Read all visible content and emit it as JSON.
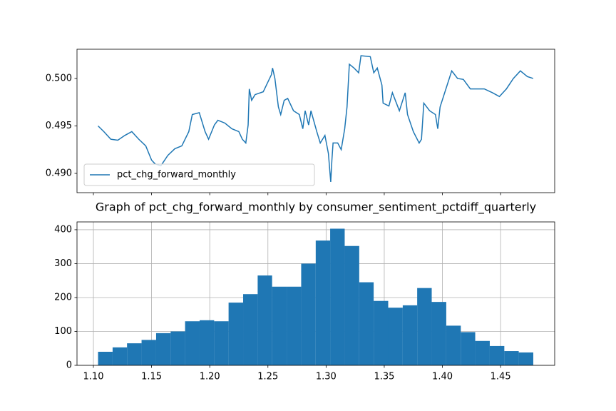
{
  "chart_data": [
    {
      "type": "line",
      "x": [
        1.104,
        1.109,
        1.115,
        1.121,
        1.127,
        1.133,
        1.139,
        1.145,
        1.15,
        1.153,
        1.158,
        1.164,
        1.17,
        1.176,
        1.182,
        1.185,
        1.191,
        1.196,
        1.199,
        1.204,
        1.207,
        1.213,
        1.219,
        1.225,
        1.228,
        1.231,
        1.233,
        1.234,
        1.236,
        1.239,
        1.246,
        1.253,
        1.254,
        1.256,
        1.259,
        1.261,
        1.264,
        1.267,
        1.272,
        1.277,
        1.28,
        1.282,
        1.285,
        1.287,
        1.292,
        1.295,
        1.299,
        1.302,
        1.304,
        1.305,
        1.306,
        1.31,
        1.313,
        1.316,
        1.318,
        1.32,
        1.324,
        1.328,
        1.33,
        1.338,
        1.341,
        1.344,
        1.348,
        1.349,
        1.354,
        1.357,
        1.363,
        1.368,
        1.37,
        1.375,
        1.38,
        1.382,
        1.384,
        1.389,
        1.394,
        1.396,
        1.398,
        1.403,
        1.408,
        1.413,
        1.418,
        1.424,
        1.43,
        1.436,
        1.443,
        1.449,
        1.455,
        1.461,
        1.467,
        1.473,
        1.478
      ],
      "series": [
        {
          "name": "pct_chg_forward_monthly",
          "color": "#1f77b4",
          "values": [
            0.495,
            0.4944,
            0.4936,
            0.4935,
            0.494,
            0.4944,
            0.4936,
            0.4929,
            0.4914,
            0.491,
            0.4908,
            0.4919,
            0.4926,
            0.4929,
            0.4944,
            0.4962,
            0.4964,
            0.4944,
            0.4936,
            0.4951,
            0.4956,
            0.4953,
            0.4947,
            0.4944,
            0.4936,
            0.4932,
            0.4951,
            0.4989,
            0.4977,
            0.4983,
            0.4986,
            0.5004,
            0.5011,
            0.5,
            0.497,
            0.4962,
            0.4977,
            0.4979,
            0.4966,
            0.4962,
            0.4947,
            0.4966,
            0.4951,
            0.4966,
            0.4944,
            0.4932,
            0.494,
            0.4921,
            0.4891,
            0.4914,
            0.4932,
            0.4932,
            0.4925,
            0.4947,
            0.497,
            0.5015,
            0.5011,
            0.5006,
            0.5024,
            0.5023,
            0.5006,
            0.5011,
            0.4993,
            0.4974,
            0.4971,
            0.4985,
            0.4966,
            0.4985,
            0.4962,
            0.4944,
            0.4932,
            0.4936,
            0.4974,
            0.4966,
            0.4962,
            0.4947,
            0.497,
            0.4989,
            0.5008,
            0.5,
            0.4999,
            0.4989,
            0.4989,
            0.4989,
            0.4985,
            0.4981,
            0.4989,
            0.5,
            0.5008,
            0.5002,
            0.5
          ]
        }
      ],
      "xlim": [
        1.0859,
        1.4965
      ],
      "xticks": [
        1.1,
        1.15,
        1.2,
        1.25,
        1.3,
        1.35,
        1.4,
        1.45
      ],
      "x_tick_labels": false,
      "ylim": [
        0.48797,
        0.50308
      ],
      "yticks": [
        {
          "value": 0.49,
          "label": "0.490"
        },
        {
          "value": 0.495,
          "label": "0.495"
        },
        {
          "value": 0.5,
          "label": "0.500"
        }
      ],
      "grid": false,
      "legend": "lower left"
    },
    {
      "type": "histogram",
      "title": "Graph of pct_chg_forward_monthly by consumer_sentiment_pctdiff_quarterly",
      "bins": [
        1.104,
        1.1165,
        1.1289,
        1.1414,
        1.1539,
        1.1664,
        1.1788,
        1.1913,
        1.2038,
        1.2162,
        1.2287,
        1.2412,
        1.2536,
        1.2661,
        1.2786,
        1.2911,
        1.3035,
        1.316,
        1.3285,
        1.3409,
        1.3534,
        1.3659,
        1.3783,
        1.3908,
        1.4033,
        1.4158,
        1.4282,
        1.4407,
        1.4532,
        1.4656,
        1.4781
      ],
      "values": [
        40,
        53,
        65,
        75,
        95,
        100,
        130,
        133,
        130,
        185,
        210,
        265,
        232,
        232,
        300,
        368,
        403,
        352,
        245,
        190,
        170,
        177,
        228,
        187,
        117,
        98,
        72,
        57,
        42,
        38
      ],
      "color": "#1f77b4",
      "xlim": [
        1.0859,
        1.4965
      ],
      "xticks": [
        {
          "value": 1.1,
          "label": "1.10"
        },
        {
          "value": 1.15,
          "label": "1.15"
        },
        {
          "value": 1.2,
          "label": "1.20"
        },
        {
          "value": 1.25,
          "label": "1.25"
        },
        {
          "value": 1.3,
          "label": "1.30"
        },
        {
          "value": 1.35,
          "label": "1.35"
        },
        {
          "value": 1.4,
          "label": "1.40"
        },
        {
          "value": 1.45,
          "label": "1.45"
        }
      ],
      "ylim": [
        0,
        423
      ],
      "yticks": [
        0,
        100,
        200,
        300,
        400
      ],
      "grid": true
    }
  ]
}
